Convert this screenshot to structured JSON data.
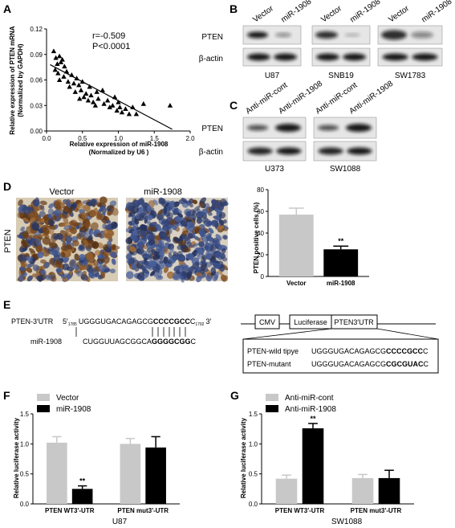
{
  "panels": {
    "A": "A",
    "B": "B",
    "C": "C",
    "D": "D",
    "E": "E",
    "F": "F",
    "G": "G"
  },
  "colors": {
    "gray": "#c8c8c8",
    "black": "#000000",
    "stain_brown": "#8a5a2c",
    "stain_blue": "#3a4f86"
  },
  "panelA": {
    "r_text": "r=-0.509",
    "p_text": "P<0.0001"
  },
  "panelB": {
    "lanes": [
      {
        "label": "Vector"
      },
      {
        "label": "miR-1908"
      },
      {
        "label": "Vector"
      },
      {
        "label": "miR-1908"
      },
      {
        "label": "Vector"
      },
      {
        "label": "miR-1908"
      }
    ],
    "row1": "PTEN",
    "row2": "β-actin",
    "cells": [
      "U87",
      "SNB19",
      "SW1783"
    ]
  },
  "panelC": {
    "lanes": [
      {
        "label": "Anti-miR-cont"
      },
      {
        "label": "Anti-miR-1908"
      },
      {
        "label": "Anti-miR-cont"
      },
      {
        "label": "Anti-miR-1908"
      }
    ],
    "row1": "PTEN",
    "row2": "β-actin",
    "cells": [
      "U373",
      "SW1088"
    ]
  },
  "panelD": {
    "img_vector": "Vector",
    "img_mir": "miR-1908",
    "row_label": "PTEN"
  },
  "panelE": {
    "utr_label": "PTEN-3′UTR",
    "five": "5′",
    "utr_start_pos": "1785",
    "utr_seq_plain": "UGGGUGACAGAGCG",
    "utr_seq_bold": "CCCCGCC",
    "utr_seq_end": "C",
    "utr_end_pos": "1792",
    "three": "3′",
    "mir_label": "miR-1908",
    "mir_seq_plain": "CUGGUUAGCGGCA",
    "mir_seq_bold": "GGGGCGG",
    "mir_seq_end": "C",
    "cmv": "CMV",
    "luc": "Luciferase",
    "pten3": "PTEN3′UTR",
    "wt_label": "PTEN-wild tipye",
    "wt_seq_plain": "UGGGUGACAGAGCG",
    "wt_seq_bold": "CCCCGCC",
    "wt_seq_end": "C",
    "mut_label": "PTEN-mutant",
    "mut_seq_plain": "UGGGUGACAGAGCG",
    "mut_seq_bold": "CGCGUAC",
    "mut_seq_end": "C"
  },
  "chart_data": [
    {
      "panel": "A",
      "type": "scatter",
      "xlabel": "Relative expression of miR-1908",
      "xlabel2": "(Normalized by U6 )",
      "ylabel": "Relative expression of PTEN mRNA",
      "ylabel2": "(Normalized by GAPDH)",
      "xlim": [
        0.0,
        2.0
      ],
      "ylim": [
        0.0,
        0.12
      ],
      "x_ticks": [
        "0.0",
        "0.5",
        "1.0",
        "1.5",
        "2.0"
      ],
      "y_ticks": [
        "0.00",
        "0.03",
        "0.06",
        "0.09",
        "0.12"
      ],
      "fit_line": {
        "x": [
          0.05,
          1.75
        ],
        "y": [
          0.078,
          0.002
        ]
      },
      "points": [
        {
          "x": 0.1,
          "y": 0.094
        },
        {
          "x": 0.13,
          "y": 0.086
        },
        {
          "x": 0.15,
          "y": 0.079
        },
        {
          "x": 0.18,
          "y": 0.088
        },
        {
          "x": 0.2,
          "y": 0.081
        },
        {
          "x": 0.22,
          "y": 0.084
        },
        {
          "x": 0.12,
          "y": 0.072
        },
        {
          "x": 0.16,
          "y": 0.068
        },
        {
          "x": 0.25,
          "y": 0.076
        },
        {
          "x": 0.28,
          "y": 0.07
        },
        {
          "x": 0.24,
          "y": 0.064
        },
        {
          "x": 0.3,
          "y": 0.058
        },
        {
          "x": 0.18,
          "y": 0.06
        },
        {
          "x": 0.35,
          "y": 0.066
        },
        {
          "x": 0.38,
          "y": 0.056
        },
        {
          "x": 0.32,
          "y": 0.052
        },
        {
          "x": 0.42,
          "y": 0.062
        },
        {
          "x": 0.45,
          "y": 0.054
        },
        {
          "x": 0.48,
          "y": 0.048
        },
        {
          "x": 0.4,
          "y": 0.046
        },
        {
          "x": 0.5,
          "y": 0.058
        },
        {
          "x": 0.55,
          "y": 0.044
        },
        {
          "x": 0.52,
          "y": 0.04
        },
        {
          "x": 0.46,
          "y": 0.038
        },
        {
          "x": 0.6,
          "y": 0.052
        },
        {
          "x": 0.58,
          "y": 0.036
        },
        {
          "x": 0.62,
          "y": 0.042
        },
        {
          "x": 0.65,
          "y": 0.034
        },
        {
          "x": 0.7,
          "y": 0.046
        },
        {
          "x": 0.68,
          "y": 0.03
        },
        {
          "x": 0.72,
          "y": 0.038
        },
        {
          "x": 0.78,
          "y": 0.048
        },
        {
          "x": 0.8,
          "y": 0.032
        },
        {
          "x": 0.85,
          "y": 0.036
        },
        {
          "x": 0.88,
          "y": 0.028
        },
        {
          "x": 0.92,
          "y": 0.03
        },
        {
          "x": 0.95,
          "y": 0.04
        },
        {
          "x": 0.98,
          "y": 0.024
        },
        {
          "x": 1.0,
          "y": 0.034
        },
        {
          "x": 1.02,
          "y": 0.028
        },
        {
          "x": 1.05,
          "y": 0.022
        },
        {
          "x": 1.1,
          "y": 0.026
        },
        {
          "x": 1.15,
          "y": 0.02
        },
        {
          "x": 1.2,
          "y": 0.028
        },
        {
          "x": 1.25,
          "y": 0.02
        },
        {
          "x": 1.35,
          "y": 0.032
        },
        {
          "x": 1.72,
          "y": 0.03
        }
      ]
    },
    {
      "panel": "D",
      "type": "bar",
      "ylabel": "PTEN positive cells (%)",
      "ylim": [
        0,
        80
      ],
      "y_ticks": [
        "0",
        "20",
        "40",
        "60",
        "80"
      ],
      "categories": [
        "Vector",
        "miR-1908"
      ],
      "values": [
        57,
        25
      ],
      "errors": [
        6,
        3
      ],
      "bar_colors": [
        "#c8c8c8",
        "#000000"
      ],
      "sig": [
        null,
        "**"
      ]
    },
    {
      "panel": "F",
      "type": "bar",
      "ylabel": "Relative luciferase activity",
      "ylim": [
        0,
        1.5
      ],
      "y_ticks": [
        "0.0",
        "0.5",
        "1.0",
        "1.5"
      ],
      "categories": [
        "PTEN WT3′-UTR",
        "PTEN mut3′-UTR"
      ],
      "cell": "U87",
      "series": [
        {
          "name": "Vector",
          "color": "#c8c8c8",
          "values": [
            1.02,
            1.0
          ],
          "errors": [
            0.1,
            0.09
          ],
          "sig": [
            null,
            null
          ]
        },
        {
          "name": "miR-1908",
          "color": "#000000",
          "values": [
            0.25,
            0.94
          ],
          "errors": [
            0.05,
            0.18
          ],
          "sig": [
            "**",
            null
          ]
        }
      ]
    },
    {
      "panel": "G",
      "type": "bar",
      "ylabel": "Relative luciferase activity",
      "ylim": [
        0,
        1.5
      ],
      "y_ticks": [
        "0.0",
        "0.5",
        "1.0",
        "1.5"
      ],
      "categories": [
        "PTEN WT3′-UTR",
        "PTEN mut3′-UTR"
      ],
      "cell": "SW1088",
      "series": [
        {
          "name": "Anti-miR-cont",
          "color": "#c8c8c8",
          "values": [
            0.42,
            0.43
          ],
          "errors": [
            0.06,
            0.06
          ],
          "sig": [
            null,
            null
          ]
        },
        {
          "name": "Anti-miR-1908",
          "color": "#000000",
          "values": [
            1.26,
            0.43
          ],
          "errors": [
            0.08,
            0.13
          ],
          "sig": [
            "**",
            null
          ]
        }
      ]
    }
  ]
}
